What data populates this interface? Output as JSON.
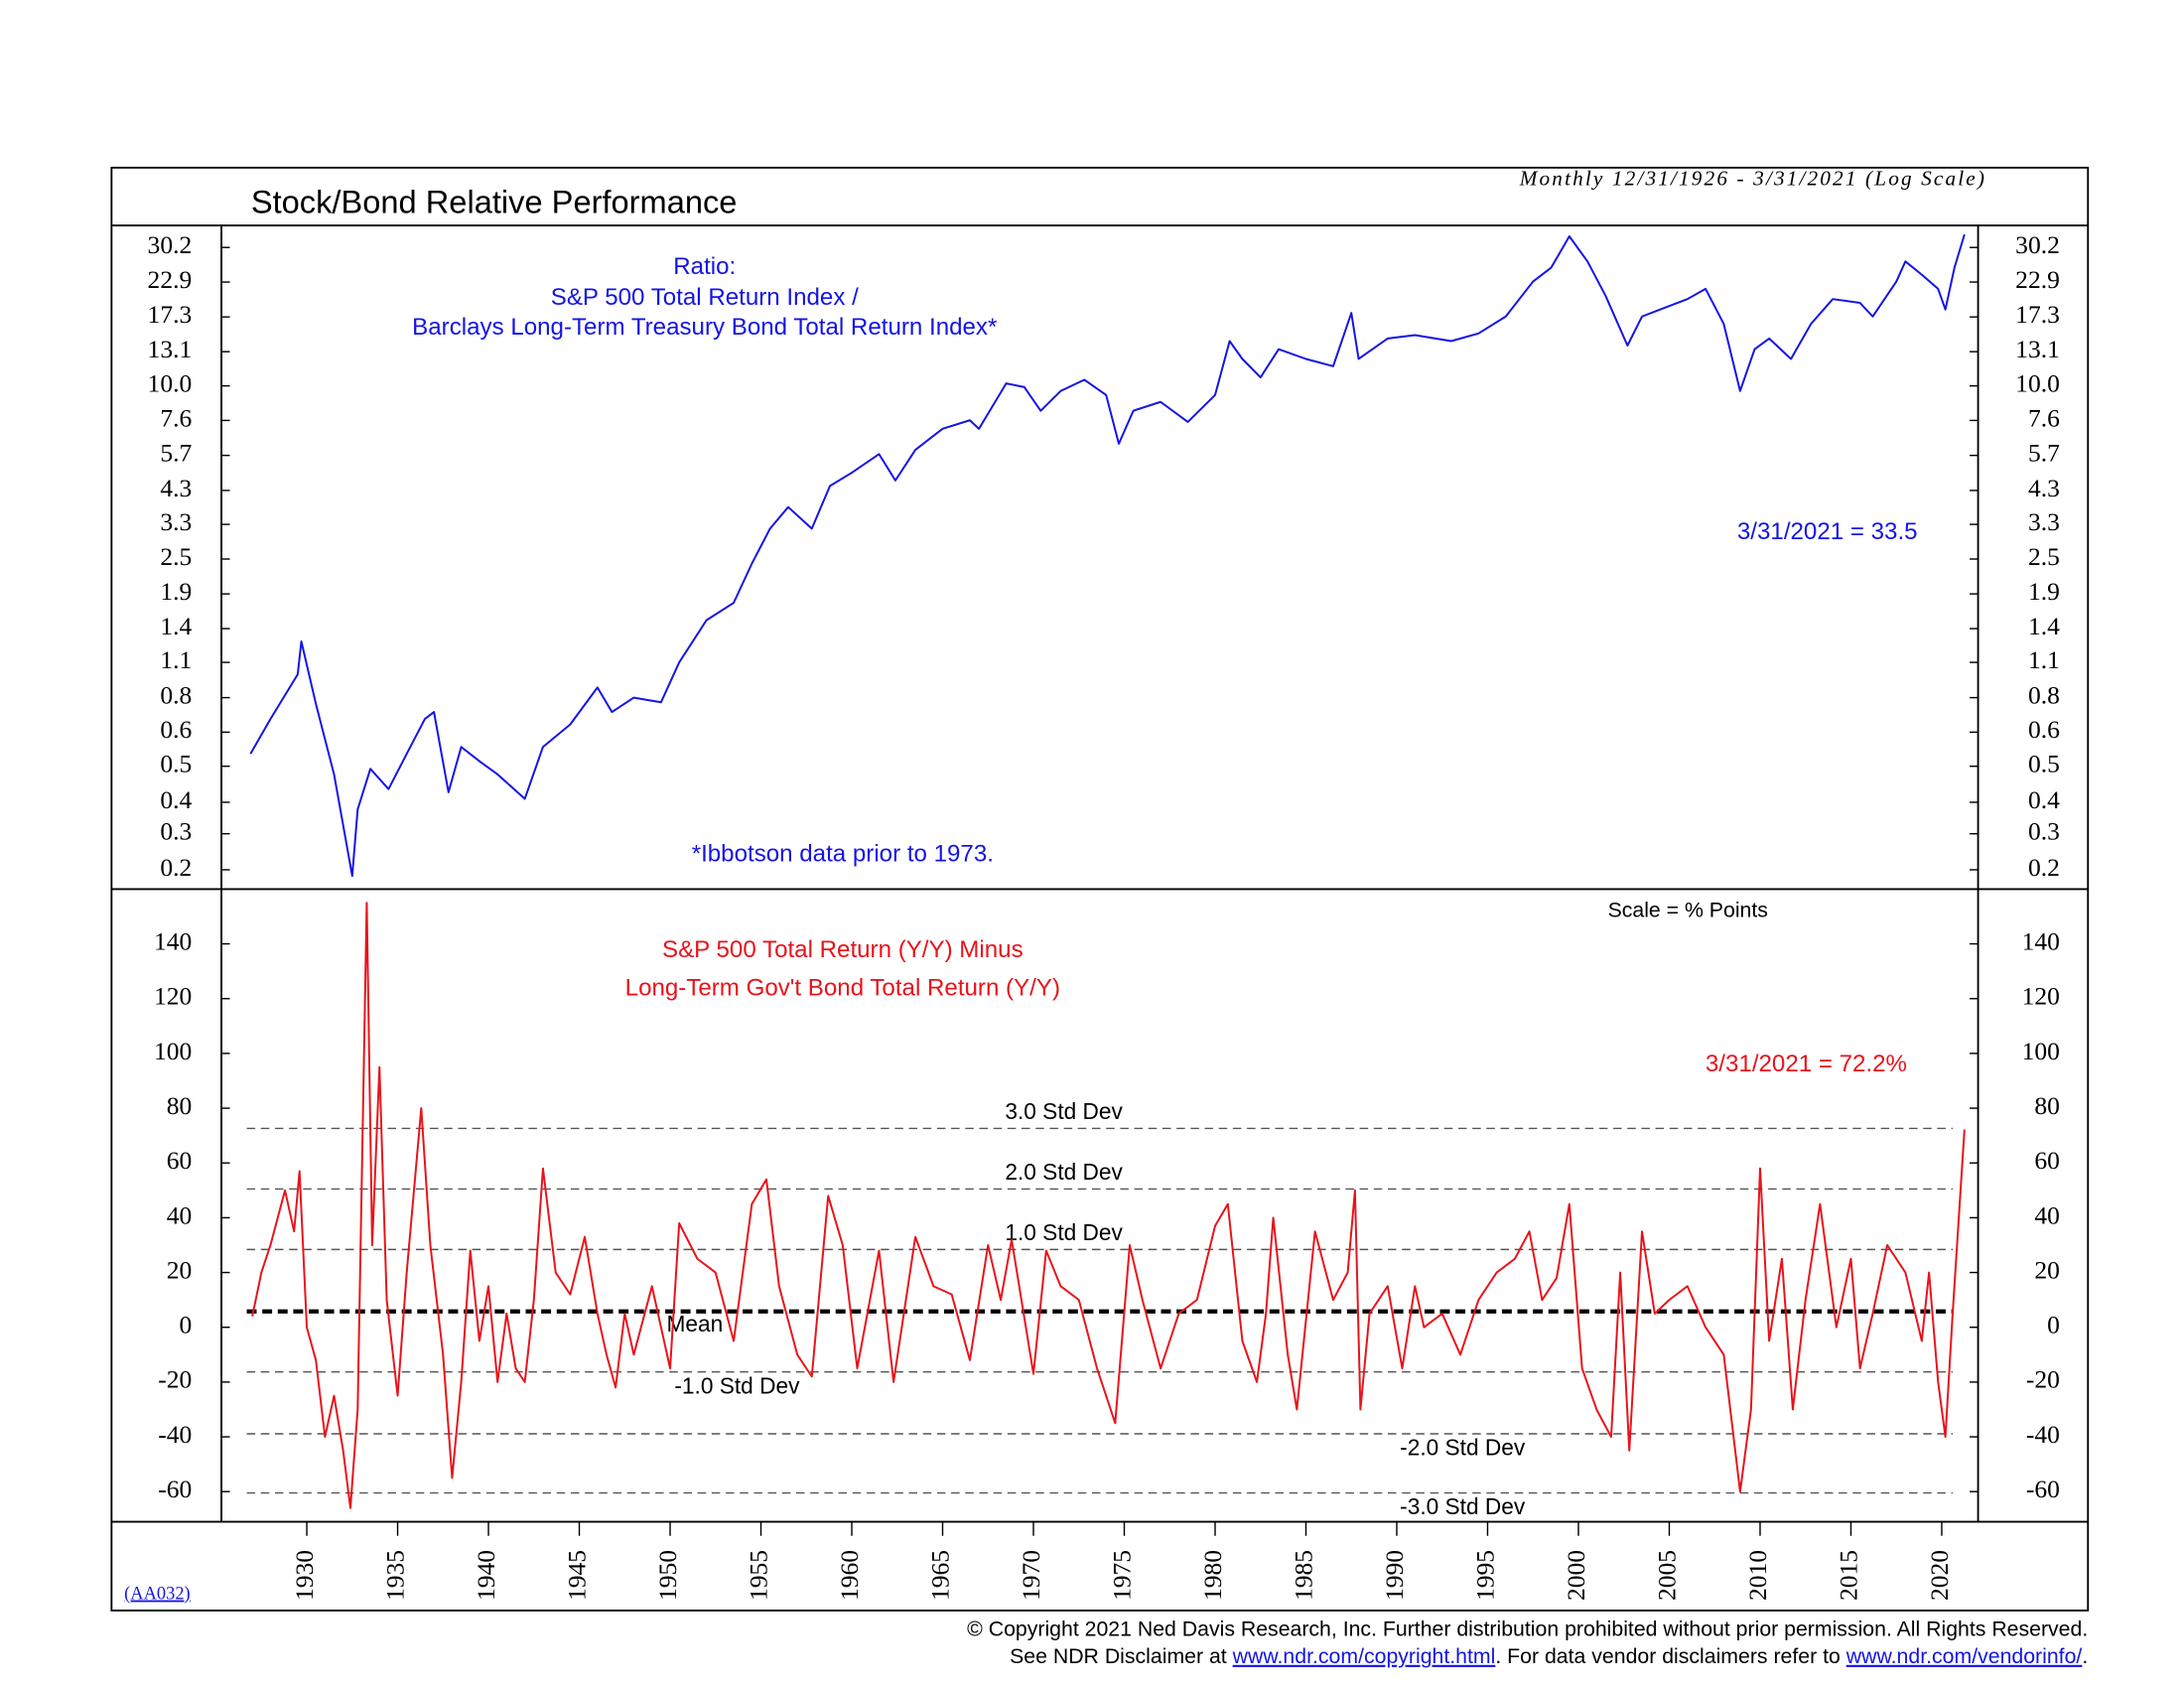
{
  "chart_data": [
    {
      "type": "line",
      "title": "Stock/Bond Relative Performance",
      "subtitle": "Monthly 12/31/1926 - 3/31/2021 (Log Scale)",
      "annotations": [
        "Ratio:",
        "S&P 500 Total Return Index /",
        "Barclays Long-Term Treasury Bond Total Return Index*",
        "3/31/2021 = 33.5",
        "*Ibbotson data prior to 1973."
      ],
      "log_scale": true,
      "color": "#1414e6",
      "x": [
        1926.9,
        1928,
        1929.5,
        1929.7,
        1930.5,
        1931.5,
        1932.5,
        1932.8,
        1933.5,
        1934.5,
        1935.5,
        1936.5,
        1937,
        1937.8,
        1938.5,
        1939.5,
        1940.5,
        1942,
        1943,
        1944.5,
        1946,
        1946.8,
        1948,
        1949.5,
        1950.5,
        1952,
        1953.5,
        1954.5,
        1955.5,
        1956.5,
        1957.8,
        1958.8,
        1960,
        1961.5,
        1962.4,
        1963.5,
        1965,
        1966.5,
        1967,
        1968.5,
        1969.5,
        1970.4,
        1971.5,
        1972.8,
        1974,
        1974.7,
        1975.5,
        1977,
        1978.5,
        1980,
        1980.8,
        1981.5,
        1982.5,
        1983.5,
        1985,
        1986.5,
        1987.5,
        1987.9,
        1989.5,
        1991,
        1993,
        1994.5,
        1996,
        1997.5,
        1998.5,
        1999.5,
        2000.5,
        2001.5,
        2002.7,
        2003.5,
        2004.5,
        2006,
        2007,
        2008,
        2008.9,
        2009.7,
        2010.5,
        2011.7,
        2012.8,
        2014,
        2015.5,
        2016.2,
        2017.5,
        2018,
        2018.9,
        2019.8,
        2020.2,
        2020.7,
        2021.25
      ],
      "values": [
        0.53,
        0.7,
        1.0,
        1.3,
        0.79,
        0.45,
        0.2,
        0.34,
        0.47,
        0.4,
        0.53,
        0.7,
        0.74,
        0.39,
        0.56,
        0.5,
        0.45,
        0.37,
        0.56,
        0.67,
        0.9,
        0.74,
        0.83,
        0.8,
        1.1,
        1.54,
        1.77,
        2.42,
        3.2,
        3.8,
        3.2,
        4.5,
        5.0,
        5.8,
        4.7,
        6.0,
        7.1,
        7.6,
        7.1,
        10.2,
        9.9,
        8.2,
        9.6,
        10.5,
        9.3,
        6.3,
        8.2,
        8.8,
        7.5,
        9.3,
        14.3,
        12.4,
        10.7,
        13.4,
        12.4,
        11.7,
        17.9,
        12.4,
        14.6,
        15.0,
        14.3,
        15.2,
        17.4,
        23.0,
        25.7,
        33,
        27,
        20.5,
        13.8,
        17.4,
        18.4,
        20,
        21.7,
        16.4,
        9.6,
        13.4,
        14.6,
        12.4,
        16.4,
        20,
        19.4,
        17.4,
        23.0,
        27,
        24.3,
        21.7,
        18.4,
        25.7,
        33.5
      ],
      "xlim": [
        1925.3,
        2022
      ],
      "ylim": [
        0.18,
        36
      ],
      "yticks": [
        {
          "value": 0.21,
          "label": "0.2"
        },
        {
          "value": 0.28,
          "label": "0.3"
        },
        {
          "value": 0.36,
          "label": "0.4"
        },
        {
          "value": 0.48,
          "label": "0.5"
        },
        {
          "value": 0.63,
          "label": "0.6"
        },
        {
          "value": 0.83,
          "label": "0.8"
        },
        1.1,
        {
          "value": 1.44,
          "label": "1.4"
        },
        1.9,
        {
          "value": 2.51,
          "label": "2.5"
        },
        {
          "value": 3.31,
          "label": "3.3"
        },
        {
          "value": 4.34,
          "label": "4.3"
        },
        {
          "value": 5.74,
          "label": "5.7"
        },
        {
          "value": 7.59,
          "label": "7.6"
        },
        {
          "value": 10,
          "label": "10.0"
        },
        {
          "value": 13.14,
          "label": "13.1"
        },
        {
          "value": 17.34,
          "label": "17.3"
        },
        {
          "value": 22.91,
          "label": "22.9"
        },
        30.2
      ]
    },
    {
      "type": "line",
      "annotations": [
        "Scale = % Points",
        "S&P 500 Total Return (Y/Y) Minus",
        "Long-Term Gov't Bond Total Return (Y/Y)",
        "3/31/2021 = 72.2%"
      ],
      "color": "#e8131b",
      "x": [
        1927,
        1927.5,
        1928,
        1928.8,
        1929.3,
        1929.6,
        1930,
        1930.5,
        1931,
        1931.5,
        1932,
        1932.4,
        1932.8,
        1933.3,
        1933.6,
        1934,
        1934.4,
        1935,
        1935.5,
        1936.3,
        1936.8,
        1937.5,
        1938,
        1938.5,
        1939,
        1939.5,
        1940,
        1940.5,
        1941,
        1941.5,
        1942,
        1942.5,
        1943,
        1943.7,
        1944.5,
        1945.3,
        1946,
        1946.5,
        1947,
        1947.5,
        1948,
        1949,
        1950,
        1950.5,
        1951.5,
        1952.5,
        1953.5,
        1954.5,
        1955.3,
        1956,
        1957,
        1957.8,
        1958.7,
        1959.5,
        1960.3,
        1961.5,
        1962.3,
        1963.5,
        1964.5,
        1965.5,
        1966.5,
        1967.5,
        1968.2,
        1968.8,
        1970,
        1970.7,
        1971.5,
        1972.5,
        1973.5,
        1974.5,
        1975.3,
        1976,
        1977,
        1978,
        1979,
        1980,
        1980.7,
        1981.5,
        1982.3,
        1982.8,
        1983.2,
        1984,
        1984.5,
        1985.5,
        1986.5,
        1987.3,
        1987.7,
        1988,
        1988.5,
        1989.5,
        1990.3,
        1991,
        1991.5,
        1992.5,
        1993.5,
        1994.5,
        1995.5,
        1996.5,
        1997.3,
        1998,
        1998.8,
        1999.5,
        2000.2,
        2001,
        2001.8,
        2002.3,
        2002.8,
        2003.5,
        2004.2,
        2005,
        2006,
        2007,
        2008,
        2008.9,
        2009.5,
        2010,
        2010.5,
        2011.2,
        2011.8,
        2012.5,
        2013.3,
        2014.2,
        2015,
        2015.5,
        2016.2,
        2017,
        2018,
        2018.9,
        2019.3,
        2019.8,
        2020.2,
        2020.6,
        2021.25
      ],
      "values": [
        4,
        20,
        30,
        50,
        35,
        57,
        0,
        -12,
        -40,
        -25,
        -45,
        -66,
        -30,
        155,
        30,
        95,
        10,
        -25,
        20,
        80,
        30,
        -10,
        -55,
        -20,
        28,
        -5,
        15,
        -20,
        5,
        -15,
        -20,
        10,
        58,
        20,
        12,
        33,
        5,
        -10,
        -22,
        5,
        -10,
        15,
        -15,
        38,
        25,
        20,
        -5,
        45,
        54,
        15,
        -10,
        -18,
        48,
        30,
        -15,
        28,
        -20,
        33,
        15,
        12,
        -12,
        30,
        10,
        32,
        -17,
        28,
        15,
        10,
        -15,
        -35,
        30,
        10,
        -15,
        5,
        10,
        37,
        45,
        -5,
        -20,
        5,
        40,
        -10,
        -30,
        35,
        10,
        20,
        50,
        -30,
        5,
        15,
        -15,
        15,
        0,
        5,
        -10,
        10,
        20,
        25,
        35,
        10,
        18,
        45,
        -15,
        -30,
        -40,
        20,
        -45,
        35,
        5,
        10,
        15,
        0,
        -10,
        -60,
        -30,
        58,
        -5,
        25,
        -30,
        10,
        45,
        0,
        25,
        -15,
        5,
        30,
        20,
        -5,
        20,
        -20,
        -40,
        5,
        72.2
      ],
      "xlim": [
        1925.3,
        2022
      ],
      "ylim": [
        -71,
        160
      ],
      "yticks": [
        -60,
        -40,
        -20,
        0,
        20,
        40,
        60,
        80,
        100,
        120,
        140
      ],
      "xticks": [
        1930,
        1935,
        1940,
        1945,
        1950,
        1955,
        1960,
        1965,
        1970,
        1975,
        1980,
        1985,
        1990,
        1995,
        2000,
        2005,
        2010,
        2015,
        2020
      ],
      "reference_lines": [
        {
          "value": 72.6,
          "label": "3.0 Std Dev",
          "style": "dashed"
        },
        {
          "value": 50.5,
          "label": "2.0 Std Dev",
          "style": "dashed"
        },
        {
          "value": 28.4,
          "label": "1.0 Std Dev",
          "style": "dashed"
        },
        {
          "value": 5.8,
          "label": "Mean",
          "style": "bold"
        },
        {
          "value": -16.3,
          "label": "-1.0 Std Dev",
          "style": "dashed"
        },
        {
          "value": -38.9,
          "label": "-2.0 Std Dev",
          "style": "dashed"
        },
        {
          "value": -60.5,
          "label": "-3.0 Std Dev",
          "style": "dashed"
        }
      ]
    }
  ],
  "footer": {
    "code": "(AA032)",
    "copyright": "© Copyright 2021 Ned Davis Research, Inc.  Further distribution prohibited without prior permission.  All Rights Reserved.",
    "disclaimer": [
      "See NDR Disclaimer at ",
      "www.ndr.com/copyright.html",
      ". For data vendor disclaimers refer to ",
      "www.ndr.com/vendorinfo/",
      "."
    ]
  }
}
